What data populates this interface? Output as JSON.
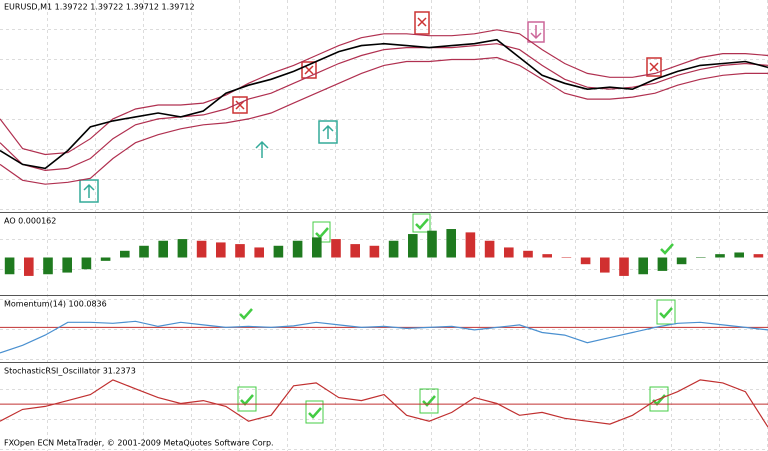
{
  "chart_data": [
    {
      "type": "line",
      "title": "EURUSD,M1  1.39722 1.39722 1.39712 1.39712",
      "ylim": [
        0,
        100
      ],
      "series": [
        {
          "name": "Upper band",
          "color": "#b03050",
          "values": [
            45,
            30,
            27,
            28,
            35,
            45,
            50,
            52,
            52,
            53,
            57,
            63,
            68,
            72,
            77,
            82,
            86,
            88,
            88,
            87,
            87,
            88,
            90,
            88,
            80,
            73,
            68,
            66,
            66,
            68,
            72,
            76,
            78,
            78,
            77
          ]
        },
        {
          "name": "Middle band",
          "color": "#b03050",
          "values": [
            33,
            22,
            19,
            20,
            25,
            35,
            42,
            45,
            46,
            47,
            50,
            55,
            58,
            63,
            68,
            73,
            77,
            80,
            81,
            81,
            81,
            82,
            83,
            80,
            72,
            65,
            61,
            60,
            61,
            63,
            67,
            70,
            72,
            73,
            72
          ]
        },
        {
          "name": "Lower band",
          "color": "#b03050",
          "values": [
            22,
            14,
            12,
            13,
            15,
            25,
            33,
            37,
            40,
            42,
            43,
            45,
            48,
            53,
            58,
            63,
            68,
            72,
            74,
            74,
            75,
            75,
            76,
            72,
            65,
            58,
            55,
            55,
            56,
            58,
            62,
            65,
            67,
            68,
            68
          ]
        },
        {
          "name": "Price",
          "color": "#000000",
          "values": [
            29,
            22,
            20,
            29,
            41,
            44,
            46,
            48,
            46,
            49,
            58,
            62,
            65,
            69,
            74,
            79,
            82,
            83,
            82,
            81,
            82,
            83,
            85,
            76,
            67,
            63,
            60,
            61,
            60,
            65,
            69,
            72,
            73,
            74,
            71
          ]
        }
      ]
    },
    {
      "type": "bar",
      "title": "AO 0.000162",
      "ylim": [
        -1,
        1
      ],
      "up_color": "#1f7a1f",
      "down_color": "#d03030",
      "values": [
        -0.5,
        -0.55,
        -0.5,
        -0.45,
        -0.35,
        -0.1,
        0.2,
        0.35,
        0.5,
        0.55,
        0.5,
        0.45,
        0.4,
        0.3,
        0.35,
        0.5,
        0.6,
        0.55,
        0.4,
        0.35,
        0.5,
        0.7,
        0.8,
        0.85,
        0.75,
        0.5,
        0.3,
        0.2,
        0.1,
        0.0,
        -0.2,
        -0.45,
        -0.55,
        -0.5,
        -0.4,
        -0.2,
        0.0,
        0.1,
        0.15,
        0.1
      ]
    },
    {
      "type": "line",
      "title": "Momentum(14) 100.0836",
      "ylim": [
        0,
        100
      ],
      "level": 60,
      "level_color": "#c03030",
      "series": [
        {
          "name": "Momentum",
          "color": "#4a90d0",
          "values": [
            10,
            25,
            45,
            70,
            70,
            68,
            72,
            62,
            70,
            65,
            60,
            62,
            60,
            63,
            70,
            65,
            60,
            62,
            58,
            60,
            62,
            55,
            60,
            65,
            50,
            45,
            30,
            40,
            50,
            60,
            68,
            70,
            65,
            60,
            55
          ]
        }
      ]
    },
    {
      "type": "line",
      "title": "StochasticRSI_Oscillator 31.2373",
      "ylim": [
        0,
        100
      ],
      "level": 49,
      "level_color": "#c03030",
      "series": [
        {
          "name": "StochRSI",
          "color": "#c03030",
          "values": [
            20,
            40,
            45,
            55,
            65,
            90,
            75,
            60,
            50,
            55,
            45,
            20,
            30,
            80,
            85,
            60,
            55,
            65,
            30,
            20,
            35,
            60,
            50,
            30,
            35,
            25,
            20,
            15,
            30,
            55,
            70,
            90,
            85,
            70,
            10
          ]
        }
      ]
    }
  ],
  "footer": "FXOpen ECN MetaTrader, © 2001-2009 MetaQuotes Software Corp."
}
